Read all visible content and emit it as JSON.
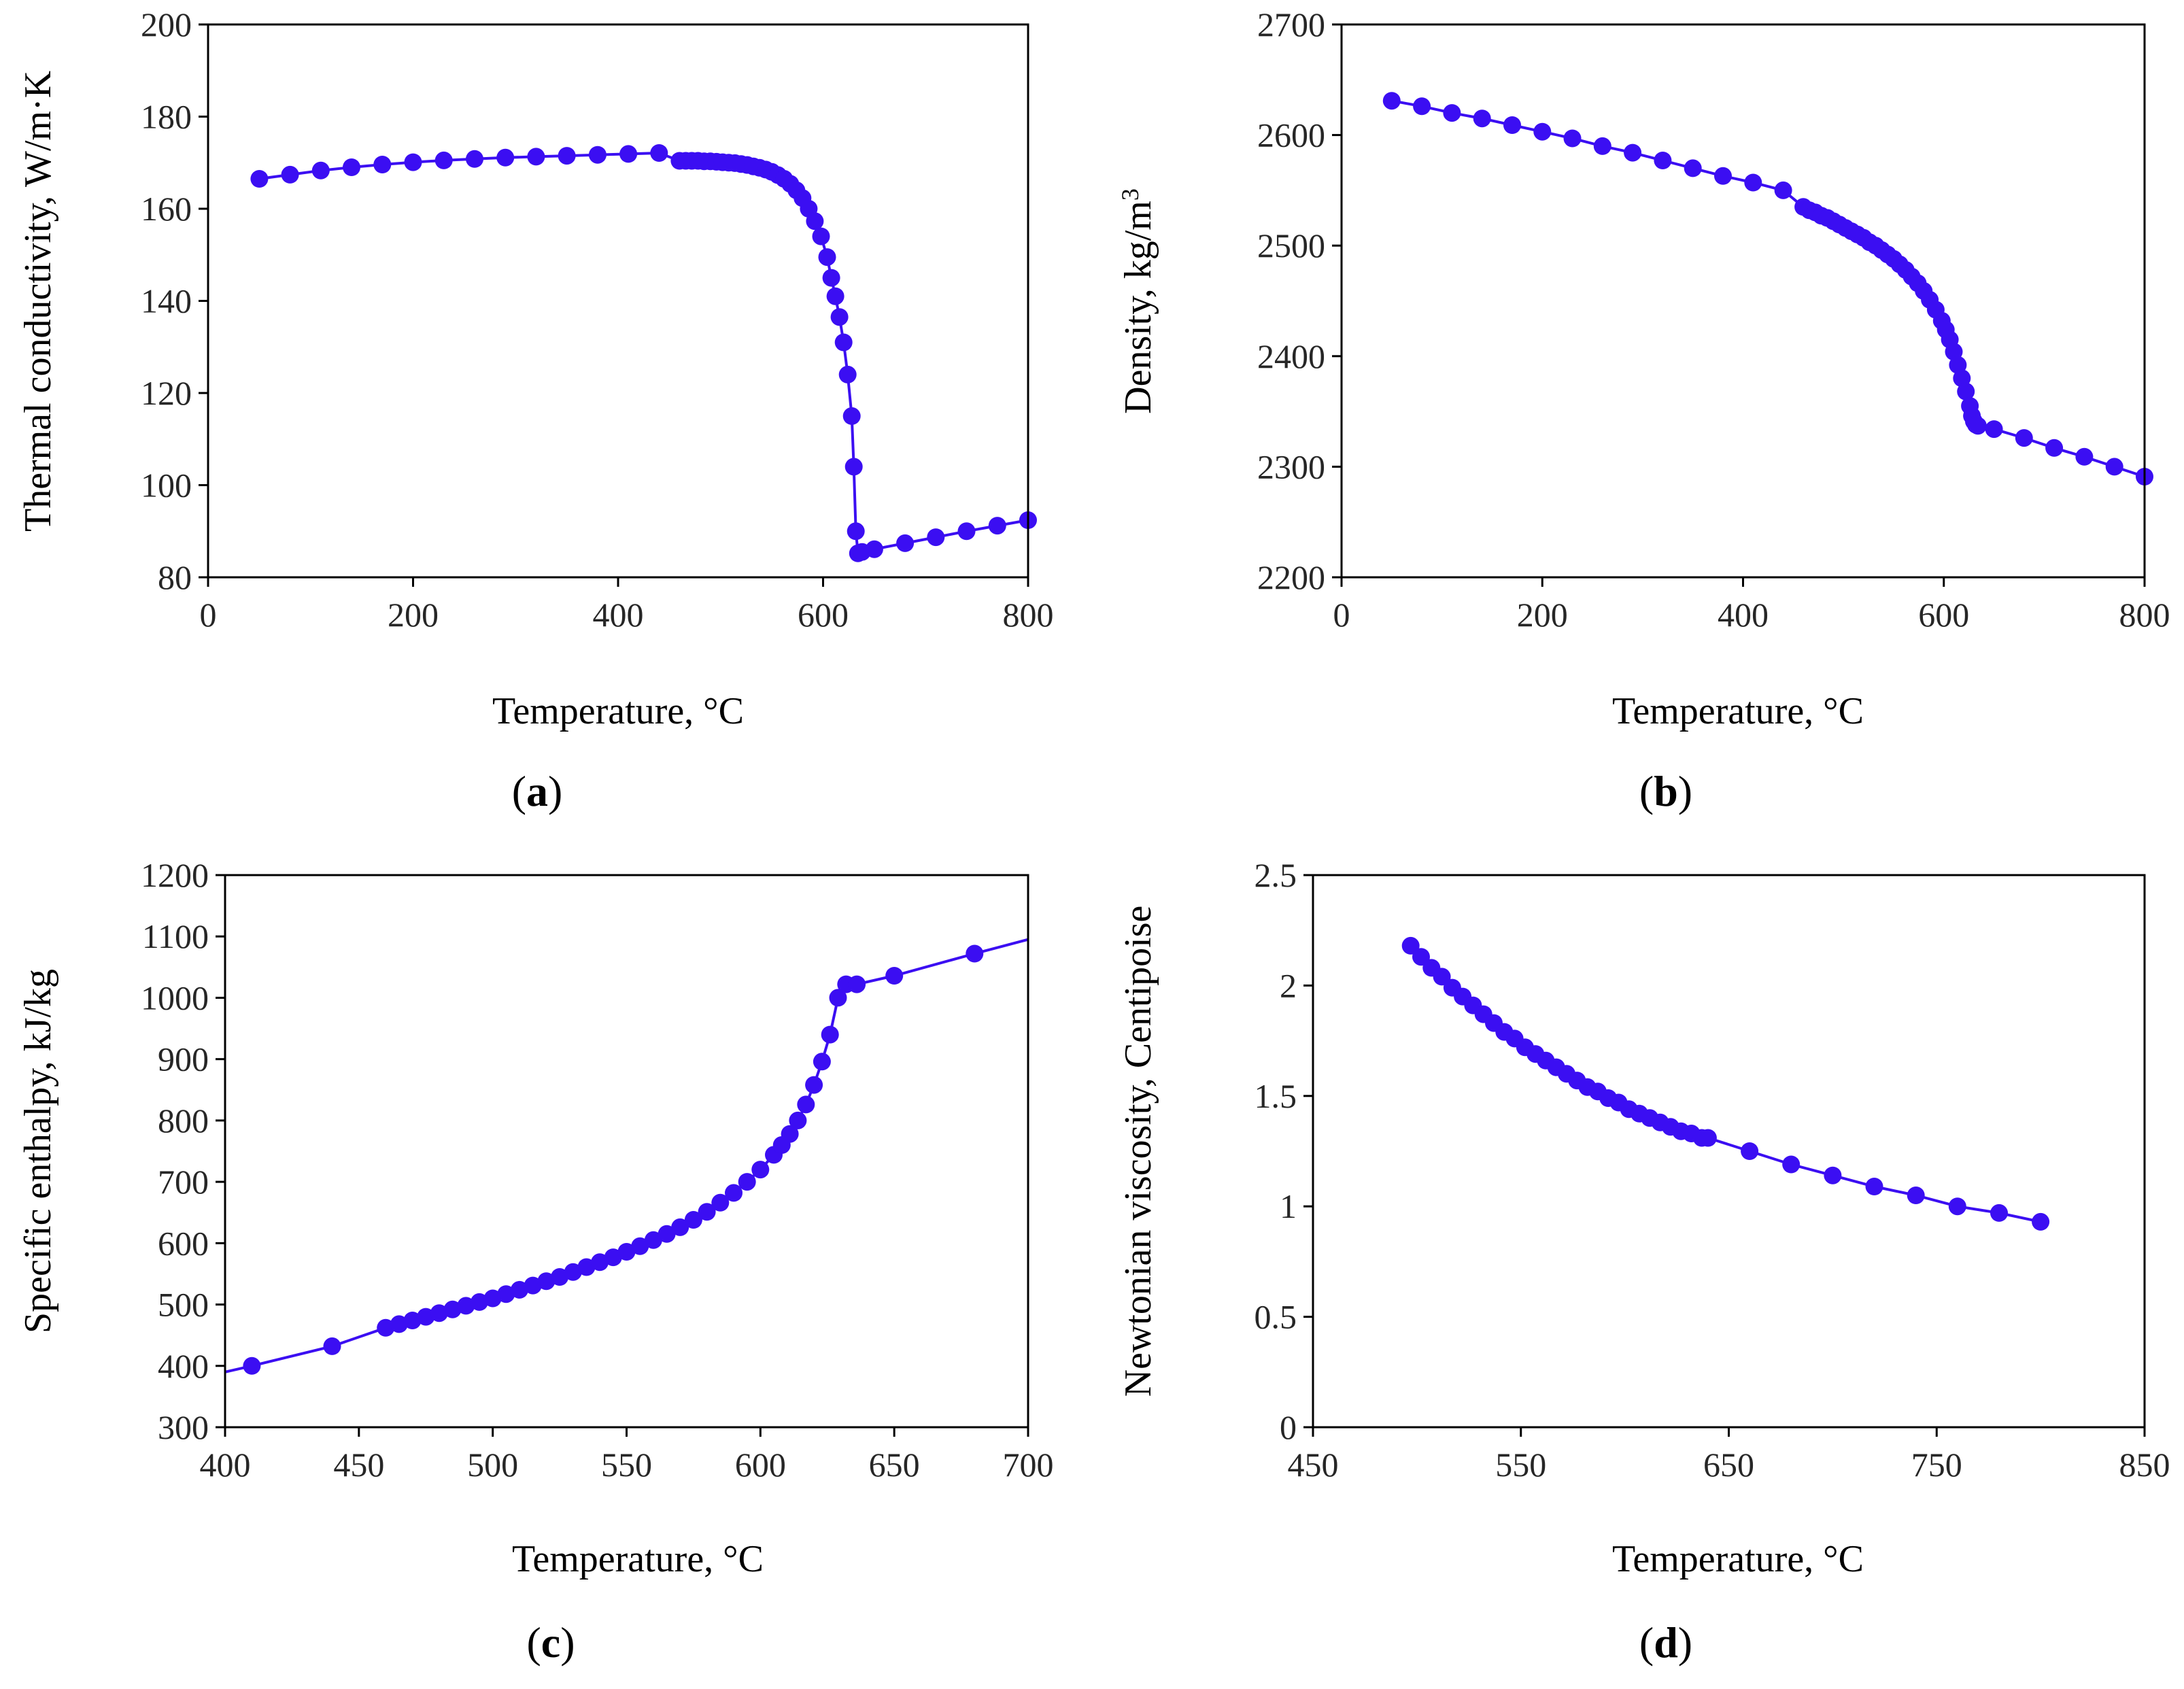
{
  "figure": {
    "colors": {
      "series": "#3b0ef2",
      "axis": "#000000"
    }
  },
  "chart_data": [
    {
      "panel_label": "(a)",
      "panel_letter": "a",
      "type": "line",
      "xlabel": "Temperature, °C",
      "ylabel": "Thermal conductivity, W/m·K",
      "xlim": [
        0,
        800
      ],
      "ylim": [
        80,
        200
      ],
      "xticks": [
        0,
        200,
        400,
        600,
        800
      ],
      "xtick_labels": [
        "0",
        "200",
        "400",
        "600",
        "800"
      ],
      "yticks": [
        80,
        100,
        120,
        140,
        160,
        180,
        200
      ],
      "ytick_labels": [
        "80",
        "100",
        "120",
        "140",
        "160",
        "180",
        "200"
      ],
      "series": [
        {
          "name": "Thermal conductivity",
          "x": [
            50,
            80,
            110,
            140,
            170,
            200,
            230,
            260,
            290,
            320,
            350,
            380,
            410,
            440,
            460,
            466,
            472,
            478,
            484,
            490,
            496,
            502,
            508,
            514,
            520,
            526,
            532,
            538,
            544,
            550,
            556,
            562,
            568,
            574,
            580,
            586,
            592,
            598,
            604,
            608,
            612,
            616,
            620,
            624,
            628,
            630,
            632,
            634,
            638,
            650,
            680,
            710,
            740,
            770,
            800
          ],
          "y": [
            166.5,
            167.4,
            168.3,
            169.0,
            169.6,
            170.1,
            170.5,
            170.8,
            171.1,
            171.3,
            171.5,
            171.7,
            171.9,
            172.1,
            170.4,
            170.4,
            170.4,
            170.4,
            170.3,
            170.3,
            170.2,
            170.1,
            170.0,
            169.9,
            169.7,
            169.5,
            169.2,
            168.9,
            168.5,
            168.0,
            167.3,
            166.5,
            165.4,
            164.0,
            162.3,
            160.0,
            157.3,
            154.0,
            149.5,
            145.0,
            141.0,
            136.5,
            131.0,
            124.0,
            115.0,
            104.0,
            90.0,
            85.2,
            85.5,
            86.1,
            87.4,
            88.7,
            90.0,
            91.2,
            92.4
          ]
        }
      ]
    },
    {
      "panel_label": "(b)",
      "panel_letter": "b",
      "type": "line",
      "xlabel": "Temperature, °C",
      "ylabel": "Density, kg/m",
      "ylabel_superscript": "3",
      "xlim": [
        0,
        800
      ],
      "ylim": [
        2200,
        2700
      ],
      "xticks": [
        0,
        200,
        400,
        600,
        800
      ],
      "xtick_labels": [
        "0",
        "200",
        "400",
        "600",
        "800"
      ],
      "yticks": [
        2200,
        2300,
        2400,
        2500,
        2600,
        2700
      ],
      "ytick_labels": [
        "2200",
        "2300",
        "2400",
        "2500",
        "2600",
        "2700"
      ],
      "series": [
        {
          "name": "Density",
          "x": [
            50,
            80,
            110,
            140,
            170,
            200,
            230,
            260,
            290,
            320,
            350,
            380,
            410,
            440,
            460,
            466,
            472,
            478,
            484,
            490,
            496,
            502,
            508,
            514,
            520,
            526,
            532,
            538,
            544,
            550,
            556,
            562,
            568,
            574,
            580,
            586,
            592,
            598,
            602,
            606,
            610,
            614,
            618,
            622,
            626,
            628,
            630,
            632,
            634,
            650,
            680,
            710,
            740,
            770,
            800
          ],
          "y": [
            2631,
            2626,
            2620,
            2615,
            2609,
            2603,
            2597,
            2590,
            2584,
            2577,
            2570,
            2563,
            2557,
            2550,
            2535,
            2532,
            2530,
            2527,
            2525,
            2522,
            2519,
            2516,
            2513,
            2510,
            2507,
            2503,
            2500,
            2496,
            2492,
            2488,
            2483,
            2478,
            2472,
            2466,
            2459,
            2451,
            2442,
            2432,
            2424,
            2415,
            2404,
            2392,
            2380,
            2368,
            2355,
            2346,
            2341,
            2338,
            2337,
            2334,
            2326,
            2317,
            2309,
            2300,
            2291
          ]
        }
      ]
    },
    {
      "panel_label": "(c)",
      "panel_letter": "c",
      "type": "line",
      "xlabel": "Temperature, °C",
      "ylabel": "Specific enthalpy, kJ/kg",
      "xlim": [
        400,
        700
      ],
      "ylim": [
        300,
        1200
      ],
      "xticks": [
        400,
        450,
        500,
        550,
        600,
        650,
        700
      ],
      "xtick_labels": [
        "400",
        "450",
        "500",
        "550",
        "600",
        "650",
        "700"
      ],
      "yticks": [
        300,
        400,
        500,
        600,
        700,
        800,
        900,
        1000,
        1100,
        1200
      ],
      "ytick_labels": [
        "300",
        "400",
        "500",
        "600",
        "700",
        "800",
        "900",
        "1000",
        "1100",
        "1200"
      ],
      "line_extent": {
        "x": [
          400,
          700
        ],
        "y": [
          390,
          1095
        ]
      },
      "series": [
        {
          "name": "Specific enthalpy",
          "x": [
            410,
            440,
            460,
            465,
            470,
            475,
            480,
            485,
            490,
            495,
            500,
            505,
            510,
            515,
            520,
            525,
            530,
            535,
            540,
            545,
            550,
            555,
            560,
            565,
            570,
            575,
            580,
            585,
            590,
            595,
            600,
            605,
            608,
            611,
            614,
            617,
            620,
            623,
            626,
            629,
            632,
            636,
            650,
            680
          ],
          "y": [
            400,
            432,
            462,
            468,
            474,
            480,
            486,
            492,
            498,
            504,
            510,
            517,
            524,
            531,
            538,
            545,
            553,
            561,
            569,
            577,
            586,
            595,
            605,
            615,
            626,
            638,
            651,
            666,
            682,
            700,
            720,
            744,
            760,
            778,
            800,
            826,
            858,
            896,
            940,
            1000,
            1022,
            1022,
            1036,
            1072
          ]
        }
      ]
    },
    {
      "panel_label": "(d)",
      "panel_letter": "d",
      "type": "line",
      "xlabel": "Temperature, °C",
      "ylabel": "Newtonian viscosity, Centipoise",
      "xlim": [
        450,
        850
      ],
      "ylim": [
        0,
        2.5
      ],
      "xticks": [
        450,
        550,
        650,
        750,
        850
      ],
      "xtick_labels": [
        "450",
        "550",
        "650",
        "750",
        "850"
      ],
      "yticks": [
        0,
        0.5,
        1,
        1.5,
        2,
        2.5
      ],
      "ytick_labels": [
        "0",
        "0.5",
        "1",
        "1.5",
        "2",
        "2.5"
      ],
      "series": [
        {
          "name": "Newtonian viscosity",
          "x": [
            497,
            502,
            507,
            512,
            517,
            522,
            527,
            532,
            537,
            542,
            547,
            552,
            557,
            562,
            567,
            572,
            577,
            582,
            587,
            592,
            597,
            602,
            607,
            612,
            617,
            622,
            627,
            632,
            637,
            640,
            660,
            680,
            700,
            720,
            740,
            760,
            780,
            800
          ],
          "y": [
            2.18,
            2.13,
            2.08,
            2.04,
            1.99,
            1.95,
            1.91,
            1.87,
            1.83,
            1.79,
            1.76,
            1.72,
            1.69,
            1.66,
            1.63,
            1.6,
            1.57,
            1.54,
            1.52,
            1.49,
            1.47,
            1.44,
            1.42,
            1.4,
            1.38,
            1.36,
            1.34,
            1.33,
            1.31,
            1.31,
            1.25,
            1.19,
            1.14,
            1.09,
            1.05,
            1.0,
            0.97,
            0.93
          ]
        }
      ]
    }
  ]
}
